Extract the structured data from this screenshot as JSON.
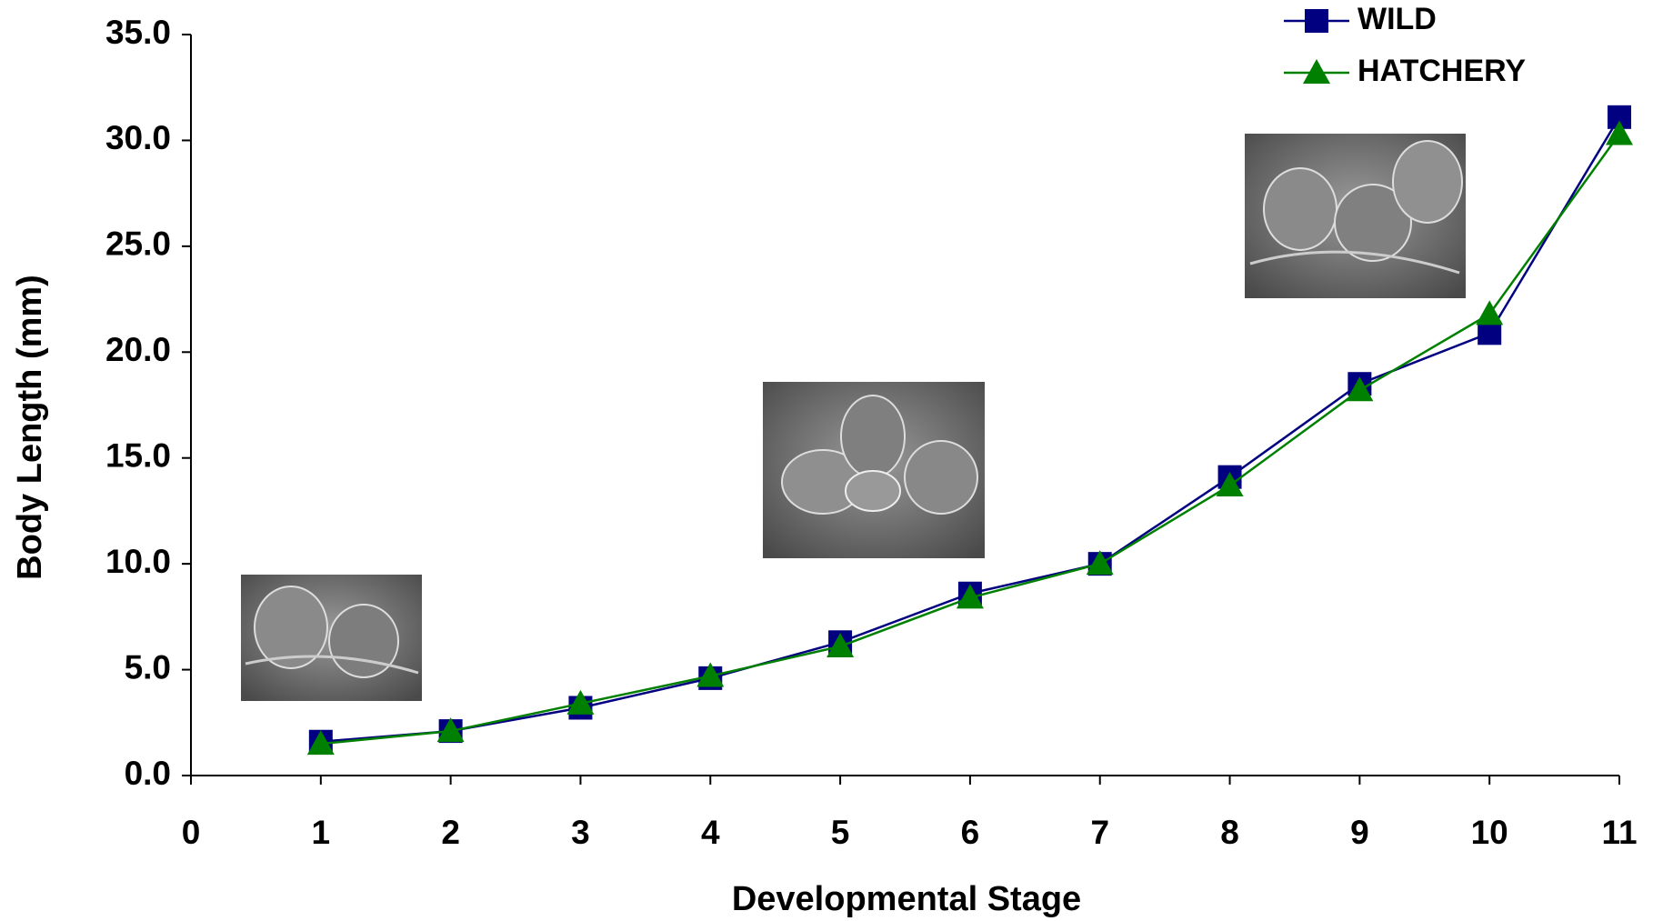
{
  "chart_data": {
    "type": "line",
    "x_label": "Developmental Stage",
    "y_label": "Body Length (mm)",
    "x": [
      1,
      2,
      3,
      4,
      5,
      6,
      7,
      8,
      9,
      10,
      11
    ],
    "series": [
      {
        "name": "WILD",
        "color": "#000080",
        "marker": "square",
        "values": [
          1.6,
          2.1,
          3.2,
          4.6,
          6.3,
          8.6,
          10.0,
          14.1,
          18.5,
          20.9,
          31.1
        ]
      },
      {
        "name": "HATCHERY",
        "color": "#008000",
        "marker": "triangle",
        "values": [
          1.5,
          2.1,
          3.4,
          4.7,
          6.1,
          8.4,
          10.0,
          13.7,
          18.2,
          21.8,
          30.3
        ]
      }
    ],
    "xlim": [
      0,
      11
    ],
    "xticks": [
      0,
      1,
      2,
      3,
      4,
      5,
      6,
      7,
      8,
      9,
      10,
      11
    ],
    "ylim": [
      0,
      35
    ],
    "yticks": [
      {
        "value": 0,
        "label": "0.0"
      },
      {
        "value": 5,
        "label": "5.0"
      },
      {
        "value": 10,
        "label": "10.0"
      },
      {
        "value": 15,
        "label": "15.0"
      },
      {
        "value": 20,
        "label": "20.0"
      },
      {
        "value": 25,
        "label": "25.0"
      },
      {
        "value": 30,
        "label": "30.0"
      },
      {
        "value": 35,
        "label": "35.0"
      }
    ],
    "legend": "top-right"
  }
}
